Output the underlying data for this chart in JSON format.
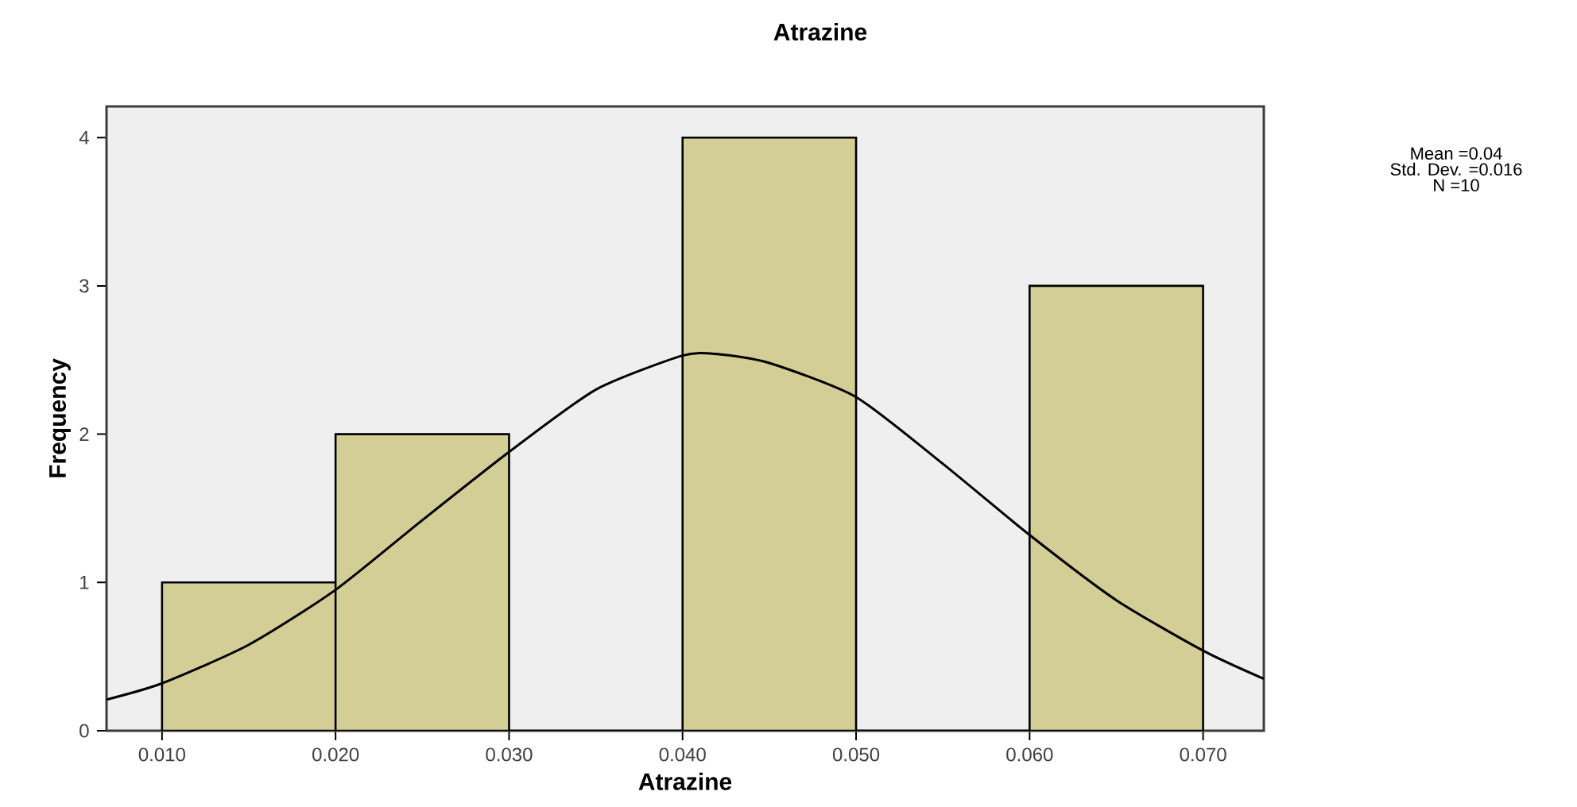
{
  "chart_data": {
    "type": "histogram",
    "title": "Atrazine",
    "xlabel": "Atrazine",
    "ylabel": "Frequency",
    "series": [
      {
        "bins": [
          0.01,
          0.02,
          0.03,
          0.04,
          0.05,
          0.06,
          0.07
        ],
        "values": [
          1,
          2,
          0,
          4,
          0,
          3
        ],
        "color": "#d3cd96"
      },
      {
        "type": "line",
        "x": [
          0.0068,
          0.01,
          0.015,
          0.02,
          0.025,
          0.03,
          0.035,
          0.04,
          0.042,
          0.045,
          0.05,
          0.055,
          0.06,
          0.065,
          0.07,
          0.0735
        ],
        "values": [
          0.21,
          0.32,
          0.58,
          0.95,
          1.42,
          1.88,
          2.3,
          2.53,
          2.54,
          2.48,
          2.25,
          1.8,
          1.32,
          0.88,
          0.54,
          0.35
        ],
        "color": "#000000"
      }
    ],
    "xlim": [
      0.0068,
      0.0735
    ],
    "ylim": [
      0,
      4.21
    ],
    "xticks": [
      {
        "value": 0.01,
        "label": "0.010"
      },
      {
        "value": 0.02,
        "label": "0.020"
      },
      {
        "value": 0.03,
        "label": "0.030"
      },
      {
        "value": 0.04,
        "label": "0.040"
      },
      {
        "value": 0.05,
        "label": "0.050"
      },
      {
        "value": 0.06,
        "label": "0.060"
      },
      {
        "value": 0.07,
        "label": "0.070"
      }
    ],
    "yticks": [
      0,
      1,
      2,
      3,
      4
    ],
    "grid": false,
    "annotations": [
      "Mean =0.04",
      "Std. Dev. =0.016",
      "N =10"
    ]
  }
}
